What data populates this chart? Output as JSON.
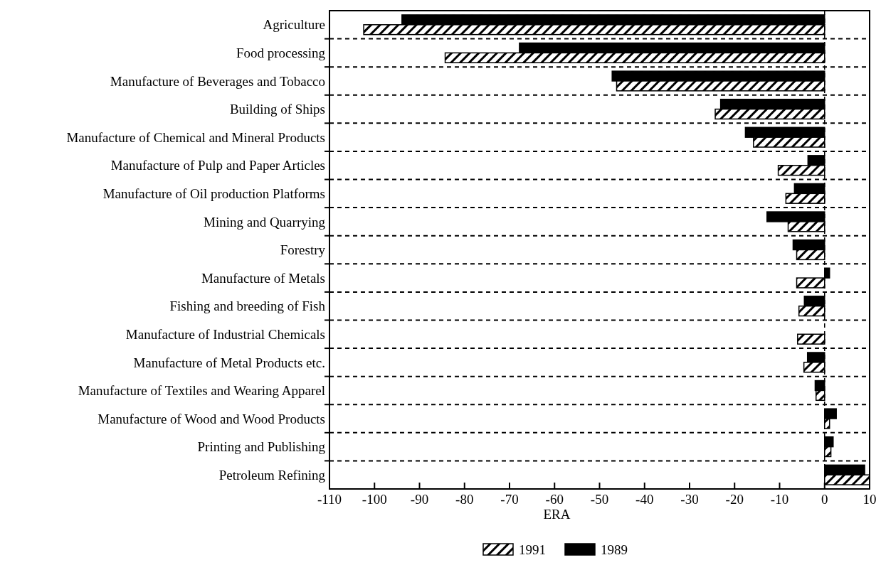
{
  "chart_data": {
    "type": "bar",
    "orientation": "horizontal",
    "xlabel": "ERA",
    "categories": [
      "Agriculture",
      "Food processing",
      "Manufacture of Beverages and Tobacco",
      "Building of Ships",
      "Manufacture of Chemical and Mineral Products",
      "Manufacture of Pulp and Paper Articles",
      "Manufacture of Oil production Platforms",
      "Mining and Quarrying",
      "Forestry",
      "Manufacture of Metals",
      "Fishing and breeding of Fish",
      "Manufacture of Industrial Chemicals",
      "Manufacture of Metal Products etc.",
      "Manufacture of Textiles and Wearing Apparel",
      "Manufacture of Wood and Wood Products",
      "Printing and Publishing",
      "Petroleum Refining"
    ],
    "series": [
      {
        "name": "1991",
        "color": "#ffffff",
        "values": [
          -102.4,
          -84.3,
          -46.2,
          -24.3,
          -15.8,
          -10.3,
          -8.6,
          -8.1,
          -6.2,
          -6.2,
          -5.7,
          -6.0,
          -4.6,
          -1.9,
          1.1,
          1.4,
          10
        ]
      },
      {
        "name": "1989",
        "color": "#000000",
        "values": [
          -93.9,
          -67.8,
          -47.2,
          -23.1,
          -17.6,
          -3.7,
          -6.7,
          -12.8,
          -7.0,
          1.1,
          -4.5,
          0,
          -3.8,
          -2.1,
          2.6,
          1.9,
          8.9
        ]
      }
    ],
    "xlim": [
      -110,
      10
    ],
    "xticks": [
      -110,
      -100,
      -90,
      -80,
      -70,
      -60,
      -50,
      -40,
      -30,
      -20,
      -10,
      0,
      10
    ],
    "grid": "y",
    "legend": "bottom",
    "ref_lines": [
      {
        "axis": "x",
        "value": 0,
        "line_style": "dashed"
      }
    ]
  }
}
